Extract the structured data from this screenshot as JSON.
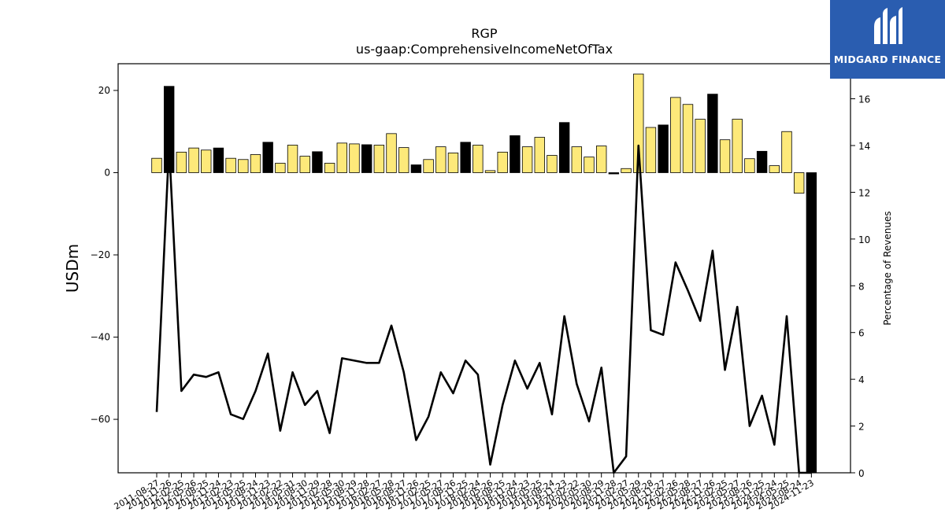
{
  "chart_data": {
    "type": "bar",
    "title": "RGP",
    "subtitle": "us-gaap:ComprehensiveIncomeNetOfTax",
    "ylabel": "USDm",
    "y2label": "Percentage of Revenues",
    "ylim": [
      -73,
      26.5
    ],
    "y2lim": [
      0,
      17.5
    ],
    "yticks": [
      20,
      0,
      -20,
      -40,
      -60
    ],
    "ytick_labels": [
      "20",
      "0",
      "−20",
      "−40",
      "−60"
    ],
    "y2ticks": [
      0,
      2,
      4,
      6,
      8,
      10,
      12,
      14,
      16
    ],
    "colors": {
      "bar_default": "#fde97a",
      "bar_highlight": "#000000",
      "line": "#000000"
    },
    "categories": [
      "2011-08-27",
      "2011-11-26",
      "2012-02-25",
      "2012-05-26",
      "2012-08-25",
      "2012-11-24",
      "2013-02-23",
      "2013-05-25",
      "2013-08-24",
      "2013-11-23",
      "2014-02-22",
      "2014-05-31",
      "2014-08-30",
      "2014-11-29",
      "2015-02-28",
      "2015-05-30",
      "2015-08-29",
      "2015-11-28",
      "2016-02-27",
      "2016-05-28",
      "2016-08-27",
      "2016-11-26",
      "2017-02-25",
      "2017-05-27",
      "2017-08-26",
      "2017-11-25",
      "2018-02-24",
      "2018-05-26",
      "2018-08-25",
      "2018-11-24",
      "2019-02-23",
      "2019-05-25",
      "2019-08-24",
      "2019-11-23",
      "2020-02-22",
      "2020-05-30",
      "2020-08-29",
      "2020-11-28",
      "2021-02-27",
      "2021-05-29",
      "2021-08-28",
      "2021-11-27",
      "2022-02-26",
      "2022-05-28",
      "2022-08-27",
      "2022-11-26",
      "2023-02-25",
      "2023-05-27",
      "2023-08-26",
      "2023-11-25",
      "2024-02-24",
      "2024-05-25",
      "2024-08-24",
      "2024-11-23"
    ],
    "series": [
      {
        "kind": "bar",
        "axis": "left",
        "values": [
          3.5,
          21.0,
          5.0,
          6.0,
          5.5,
          6.0,
          3.5,
          3.2,
          4.4,
          7.4,
          2.3,
          6.7,
          4.0,
          5.1,
          2.3,
          7.2,
          7.0,
          6.8,
          6.7,
          9.5,
          6.1,
          1.9,
          3.2,
          6.3,
          4.8,
          7.4,
          6.7,
          0.5,
          5.0,
          9.0,
          6.3,
          8.6,
          4.2,
          12.2,
          6.3,
          3.8,
          6.5,
          -0.3,
          1.0,
          24.0,
          11.0,
          11.6,
          18.3,
          16.6,
          13.0,
          19.1,
          8.0,
          13.0,
          3.4,
          5.2,
          1.7,
          10.0,
          -5.0,
          -73.0
        ],
        "highlight": [
          false,
          true,
          false,
          false,
          false,
          true,
          false,
          false,
          false,
          true,
          false,
          false,
          false,
          true,
          false,
          false,
          false,
          true,
          false,
          false,
          false,
          true,
          false,
          false,
          false,
          true,
          false,
          false,
          false,
          true,
          false,
          false,
          false,
          true,
          false,
          false,
          false,
          true,
          false,
          false,
          false,
          true,
          false,
          false,
          false,
          true,
          false,
          false,
          false,
          true,
          false,
          false,
          false,
          true
        ]
      },
      {
        "kind": "line",
        "axis": "right",
        "values": [
          2.6,
          14.0,
          3.5,
          4.2,
          4.1,
          4.3,
          2.5,
          2.3,
          3.5,
          5.1,
          1.8,
          4.3,
          2.9,
          3.5,
          1.7,
          4.9,
          4.8,
          4.7,
          4.7,
          6.3,
          4.3,
          1.4,
          2.4,
          4.3,
          3.4,
          4.8,
          4.2,
          0.35,
          2.9,
          4.8,
          3.6,
          4.7,
          2.5,
          6.7,
          3.8,
          2.2,
          4.5,
          0.0,
          0.7,
          14.0,
          6.1,
          5.9,
          9.0,
          7.8,
          6.5,
          9.5,
          4.4,
          7.1,
          2.0,
          3.3,
          1.2,
          6.7,
          0.0,
          0.0
        ]
      }
    ],
    "grid": false,
    "legend": "none"
  },
  "brand": {
    "name": "MIDGARD FINANCE",
    "color": "#2a5db0"
  }
}
